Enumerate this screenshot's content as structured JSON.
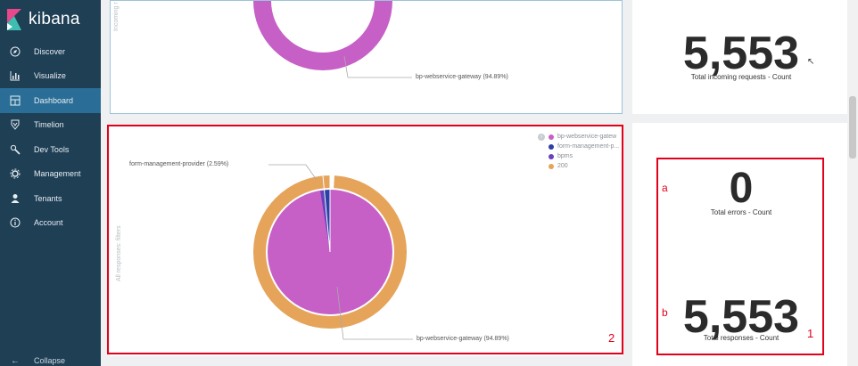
{
  "brand": {
    "name": "kibana"
  },
  "sidebar": {
    "items": [
      {
        "label": "Discover",
        "icon": "compass-icon"
      },
      {
        "label": "Visualize",
        "icon": "bar-chart-icon"
      },
      {
        "label": "Dashboard",
        "icon": "dashboard-icon"
      },
      {
        "label": "Timelion",
        "icon": "timelion-icon"
      },
      {
        "label": "Dev Tools",
        "icon": "wrench-icon"
      },
      {
        "label": "Management",
        "icon": "gear-icon"
      },
      {
        "label": "Tenants",
        "icon": "user-icon"
      },
      {
        "label": "Account",
        "icon": "info-icon"
      }
    ],
    "active": "Dashboard",
    "collapse_label": "Collapse"
  },
  "top_chart": {
    "side_label": "Incoming r",
    "callout": "bp-webservice-gateway (94.89%)"
  },
  "incoming_metric": {
    "value": "5,553",
    "label": "Total incoming requests - Count"
  },
  "responses_chart": {
    "side_label": "All responses: filters",
    "callout_top": "form-management-provider (2.59%)",
    "callout_bottom": "bp-webservice-gateway (94.89%)",
    "legend": [
      {
        "label": "bp-webservice-gatew",
        "color": "#c660c6"
      },
      {
        "label": "form-management-p...",
        "color": "#2e3fa6"
      },
      {
        "label": "bpms",
        "color": "#6a3fc0"
      },
      {
        "label": "200",
        "color": "#e5a45a"
      }
    ]
  },
  "errors_metric": {
    "value": "0",
    "label": "Total errors - Count"
  },
  "responses_metric": {
    "value": "5,553",
    "label": "Total responses - Count"
  },
  "annotations": {
    "box1": "1",
    "box2": "2",
    "a": "a",
    "b": "b"
  },
  "colors": {
    "sidebar": "#1f3f55",
    "active": "#2a6e97",
    "pink": "#c660c6",
    "orange": "#e5a45a",
    "annotation": "#e2001a"
  }
}
